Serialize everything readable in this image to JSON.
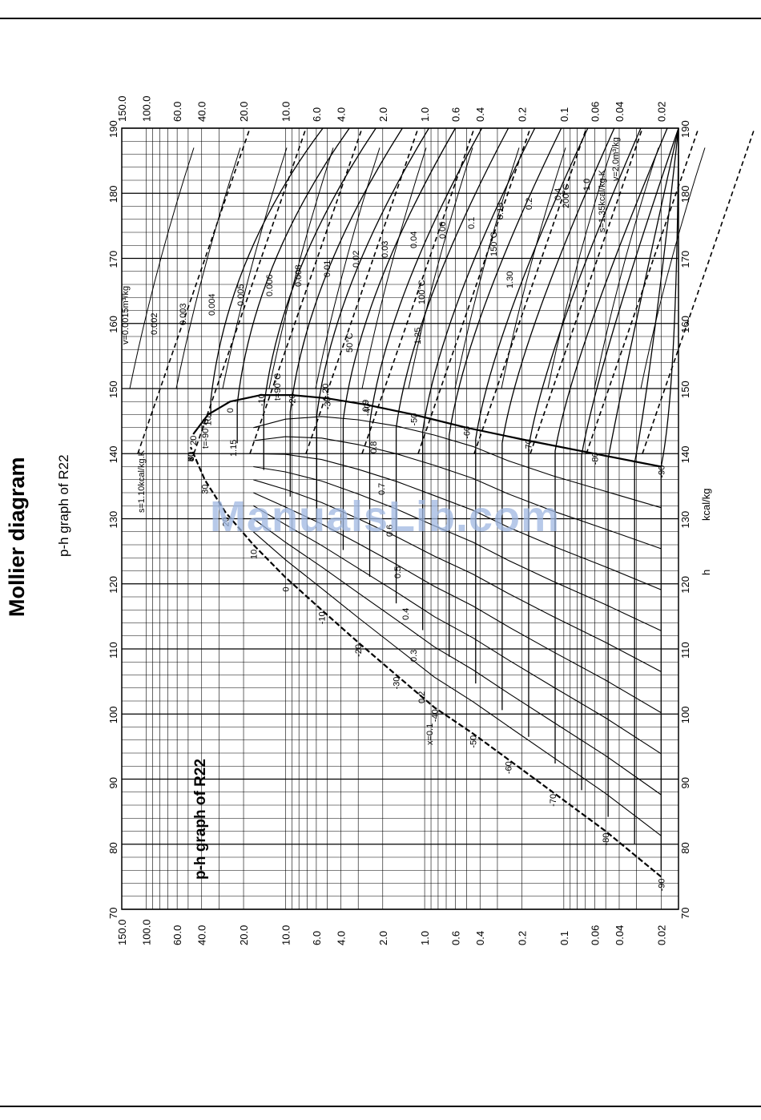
{
  "page": {
    "title": "Mollier diagram",
    "subtitle": "p-h graph of R22",
    "watermark": "ManualsLib.com"
  },
  "chart_data": {
    "type": "line",
    "title": "p-h graph of R22",
    "xlabel": "h",
    "xunit": "kcal/kg",
    "ylabel": "",
    "xlim": [
      70,
      190
    ],
    "x_ticks": [
      70,
      80,
      90,
      100,
      110,
      120,
      130,
      140,
      150,
      160,
      170,
      180,
      190
    ],
    "y_scale": "log",
    "ylim": [
      0.015,
      150.0
    ],
    "y_ticks": [
      "150.0",
      "100.0",
      "60.0",
      "40.0",
      "20.0",
      "10.0",
      "6.0",
      "4.0",
      "2.0",
      "1.0",
      "0.6",
      "0.4",
      "0.2",
      "0.1",
      "0.06",
      "0.04",
      "0.02"
    ],
    "y_tick_values": [
      150,
      100,
      60,
      40,
      20,
      10,
      6,
      4,
      2,
      1,
      0.6,
      0.4,
      0.2,
      0.1,
      0.06,
      0.04,
      0.02
    ],
    "grid": true,
    "saturated_liquid": {
      "points": [
        [
          75,
          0.02
        ],
        [
          82,
          0.05
        ],
        [
          88,
          0.12
        ],
        [
          93,
          0.25
        ],
        [
          97,
          0.45
        ],
        [
          101,
          0.85
        ],
        [
          106,
          1.6
        ],
        [
          111,
          3.0
        ],
        [
          116,
          5.5
        ],
        [
          121,
          10
        ],
        [
          126,
          17
        ],
        [
          131,
          27
        ],
        [
          136,
          38
        ],
        [
          141,
          48
        ]
      ],
      "temperature_labels": [
        "-90",
        "-80",
        "-70",
        "-60",
        "-50",
        "-40",
        "-30",
        "-20",
        "-10",
        "0",
        "10",
        "20",
        "30",
        "40",
        "50",
        "60",
        "70",
        "80"
      ]
    },
    "saturated_vapour": {
      "points": [
        [
          138,
          0.02
        ],
        [
          140,
          0.06
        ],
        [
          142,
          0.18
        ],
        [
          144,
          0.5
        ],
        [
          146,
          1.2
        ],
        [
          147.5,
          2.6
        ],
        [
          148.5,
          5
        ],
        [
          149,
          9
        ],
        [
          149,
          15
        ],
        [
          148,
          25
        ],
        [
          146,
          36
        ],
        [
          143,
          46
        ]
      ],
      "temperature_labels": [
        "-90",
        "-80",
        "-70",
        "-60",
        "-50",
        "-40",
        "-30",
        "-20",
        "-10",
        "0",
        "10",
        "20",
        "30",
        "40",
        "50",
        "60",
        "70",
        "80"
      ]
    },
    "critical_point": [
      141,
      50
    ],
    "quality_lines": [
      "x=0.1",
      "0.2",
      "0.3",
      "0.4",
      "0.5",
      "0.6",
      "0.7",
      "0.8",
      "0.9"
    ],
    "isotherm_labels": [
      "t=-90°C",
      "t=90°C",
      "50°C",
      "100°C",
      "150°C",
      "200°C"
    ],
    "isentrope_labels": [
      "s=1.10kcal/kg.K",
      "1.15",
      "1.20",
      "1.25",
      "1.30",
      "s=1.35kcal/kg.K"
    ],
    "isochore_labels": [
      "v=0.0015m³/kg",
      "0.002",
      "0.003",
      "0.004",
      "0.005",
      "0.006",
      "0.008",
      "0.01",
      "0.02",
      "0.03",
      "0.04",
      "0.06",
      "0.1",
      "0.15",
      "0.2",
      "0.4",
      "1.0",
      "v=2.0m³/kg"
    ]
  }
}
